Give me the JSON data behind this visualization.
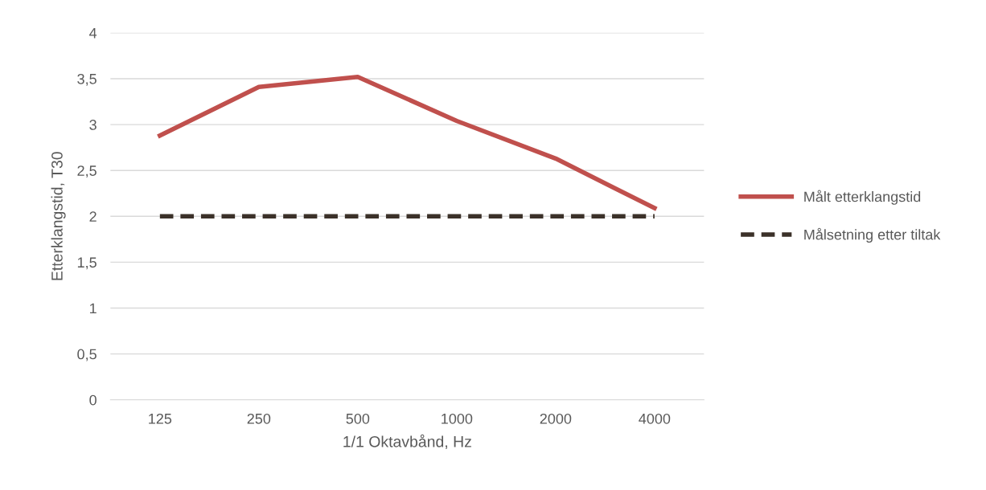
{
  "chart_data": {
    "type": "line",
    "xlabel": "1/1 Oktavbånd, Hz",
    "ylabel": "Etterklangstid, T30",
    "categories": [
      "125",
      "250",
      "500",
      "1000",
      "2000",
      "4000"
    ],
    "series": [
      {
        "name": "Målt etterklangstid",
        "color": "#c0504d",
        "line_style": "solid",
        "values": [
          2.88,
          3.41,
          3.52,
          3.04,
          2.63,
          2.09
        ]
      },
      {
        "name": "Målsetning etter tiltak",
        "color": "#3b3129",
        "line_style": "dashed",
        "values": [
          2,
          2,
          2,
          2,
          2,
          2
        ]
      }
    ],
    "ylim": [
      0,
      4
    ],
    "yticks": [
      0,
      {
        "value": 0.5,
        "label": "0,5"
      },
      1,
      {
        "value": 1.5,
        "label": "1,5"
      },
      2,
      {
        "value": 2.5,
        "label": "2,5"
      },
      3,
      {
        "value": 3.5,
        "label": "3,5"
      },
      4
    ],
    "grid": "y",
    "legend": "right",
    "marker": "none"
  }
}
